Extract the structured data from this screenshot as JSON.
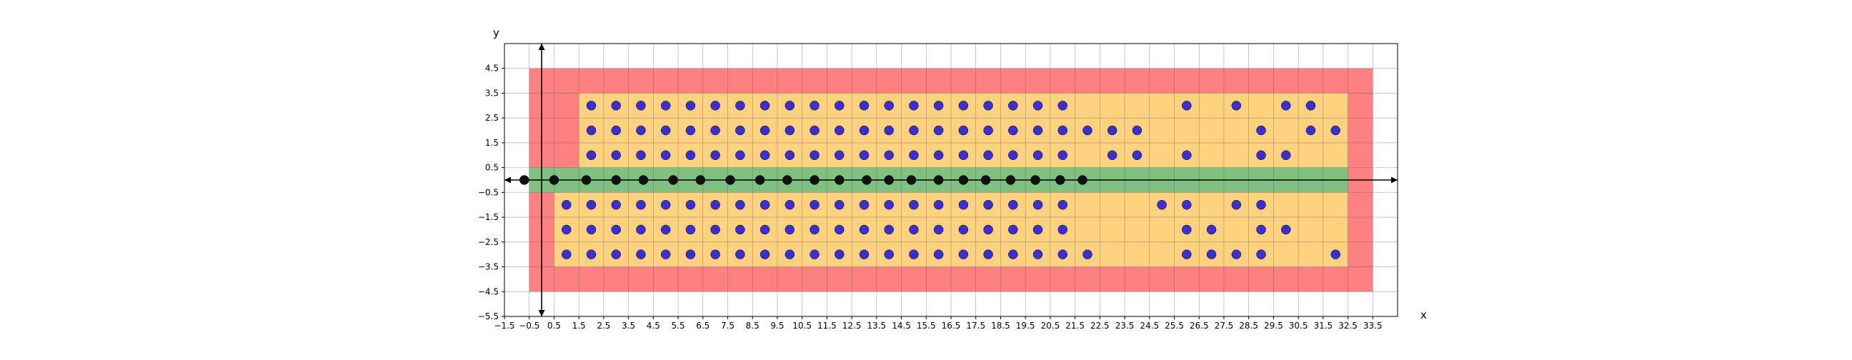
{
  "chart_data": {
    "type": "scatter",
    "title": "",
    "xlabel": "x",
    "ylabel": "y",
    "xlim": [
      -1.5,
      34.5
    ],
    "ylim": [
      -5.5,
      5.5
    ],
    "grid": true,
    "x_ticks": [
      "−1.5",
      "−0.5",
      "0.5",
      "1.5",
      "2.5",
      "3.5",
      "4.5",
      "5.5",
      "6.5",
      "7.5",
      "8.5",
      "9.5",
      "10.5",
      "11.5",
      "12.5",
      "13.5",
      "14.5",
      "15.5",
      "16.5",
      "17.5",
      "18.5",
      "19.5",
      "20.5",
      "21.5",
      "22.5",
      "23.5",
      "24.5",
      "25.5",
      "26.5",
      "27.5",
      "28.5",
      "29.5",
      "30.5",
      "31.5",
      "32.5",
      "33.5"
    ],
    "y_ticks": [
      "−5.5",
      "−4.5",
      "−3.5",
      "−2.5",
      "−1.5",
      "−0.5",
      "0.5",
      "1.5",
      "2.5",
      "3.5",
      "4.5"
    ],
    "regions": [
      {
        "color": "#ff8080",
        "x": [
          -0.5,
          33.5
        ],
        "y": [
          -4.5,
          4.5
        ]
      },
      {
        "color": "#ffd280",
        "x": [
          1.5,
          32.5
        ],
        "y": [
          0.5,
          3.5
        ]
      },
      {
        "color": "#ffd280",
        "x": [
          0.5,
          32.5
        ],
        "y": [
          -3.5,
          -0.5
        ]
      },
      {
        "color": "#80c080",
        "x": [
          -0.5,
          32.5
        ],
        "y": [
          -0.5,
          0.5
        ]
      }
    ],
    "series": [
      {
        "marker_color": "#3a2fd6",
        "points": [
          [
            2,
            3
          ],
          [
            3,
            3
          ],
          [
            4,
            3
          ],
          [
            5,
            3
          ],
          [
            6,
            3
          ],
          [
            7,
            3
          ],
          [
            8,
            3
          ],
          [
            9,
            3
          ],
          [
            10,
            3
          ],
          [
            11,
            3
          ],
          [
            12,
            3
          ],
          [
            13,
            3
          ],
          [
            14,
            3
          ],
          [
            15,
            3
          ],
          [
            16,
            3
          ],
          [
            17,
            3
          ],
          [
            18,
            3
          ],
          [
            19,
            3
          ],
          [
            20,
            3
          ],
          [
            21,
            3
          ],
          [
            26,
            3
          ],
          [
            28,
            3
          ],
          [
            30,
            3
          ],
          [
            31,
            3
          ],
          [
            2,
            2
          ],
          [
            3,
            2
          ],
          [
            4,
            2
          ],
          [
            5,
            2
          ],
          [
            6,
            2
          ],
          [
            7,
            2
          ],
          [
            8,
            2
          ],
          [
            9,
            2
          ],
          [
            10,
            2
          ],
          [
            11,
            2
          ],
          [
            12,
            2
          ],
          [
            13,
            2
          ],
          [
            14,
            2
          ],
          [
            15,
            2
          ],
          [
            16,
            2
          ],
          [
            17,
            2
          ],
          [
            18,
            2
          ],
          [
            19,
            2
          ],
          [
            20,
            2
          ],
          [
            21,
            2
          ],
          [
            22,
            2
          ],
          [
            23,
            2
          ],
          [
            24,
            2
          ],
          [
            29,
            2
          ],
          [
            31,
            2
          ],
          [
            32,
            2
          ],
          [
            2,
            1
          ],
          [
            3,
            1
          ],
          [
            4,
            1
          ],
          [
            5,
            1
          ],
          [
            6,
            1
          ],
          [
            7,
            1
          ],
          [
            8,
            1
          ],
          [
            9,
            1
          ],
          [
            10,
            1
          ],
          [
            11,
            1
          ],
          [
            12,
            1
          ],
          [
            13,
            1
          ],
          [
            14,
            1
          ],
          [
            15,
            1
          ],
          [
            16,
            1
          ],
          [
            17,
            1
          ],
          [
            18,
            1
          ],
          [
            19,
            1
          ],
          [
            20,
            1
          ],
          [
            21,
            1
          ],
          [
            23,
            1
          ],
          [
            24,
            1
          ],
          [
            26,
            1
          ],
          [
            29,
            1
          ],
          [
            30,
            1
          ],
          [
            1,
            -1
          ],
          [
            2,
            -1
          ],
          [
            3,
            -1
          ],
          [
            4,
            -1
          ],
          [
            5,
            -1
          ],
          [
            6,
            -1
          ],
          [
            7,
            -1
          ],
          [
            8,
            -1
          ],
          [
            9,
            -1
          ],
          [
            10,
            -1
          ],
          [
            11,
            -1
          ],
          [
            12,
            -1
          ],
          [
            13,
            -1
          ],
          [
            14,
            -1
          ],
          [
            15,
            -1
          ],
          [
            16,
            -1
          ],
          [
            17,
            -1
          ],
          [
            18,
            -1
          ],
          [
            19,
            -1
          ],
          [
            20,
            -1
          ],
          [
            21,
            -1
          ],
          [
            25,
            -1
          ],
          [
            26,
            -1
          ],
          [
            28,
            -1
          ],
          [
            29,
            -1
          ],
          [
            1,
            -2
          ],
          [
            2,
            -2
          ],
          [
            3,
            -2
          ],
          [
            4,
            -2
          ],
          [
            5,
            -2
          ],
          [
            6,
            -2
          ],
          [
            7,
            -2
          ],
          [
            8,
            -2
          ],
          [
            9,
            -2
          ],
          [
            10,
            -2
          ],
          [
            11,
            -2
          ],
          [
            12,
            -2
          ],
          [
            13,
            -2
          ],
          [
            14,
            -2
          ],
          [
            15,
            -2
          ],
          [
            16,
            -2
          ],
          [
            17,
            -2
          ],
          [
            18,
            -2
          ],
          [
            19,
            -2
          ],
          [
            20,
            -2
          ],
          [
            21,
            -2
          ],
          [
            26,
            -2
          ],
          [
            27,
            -2
          ],
          [
            29,
            -2
          ],
          [
            30,
            -2
          ],
          [
            1,
            -3
          ],
          [
            2,
            -3
          ],
          [
            3,
            -3
          ],
          [
            4,
            -3
          ],
          [
            5,
            -3
          ],
          [
            6,
            -3
          ],
          [
            7,
            -3
          ],
          [
            8,
            -3
          ],
          [
            9,
            -3
          ],
          [
            10,
            -3
          ],
          [
            11,
            -3
          ],
          [
            12,
            -3
          ],
          [
            13,
            -3
          ],
          [
            14,
            -3
          ],
          [
            15,
            -3
          ],
          [
            16,
            -3
          ],
          [
            17,
            -3
          ],
          [
            18,
            -3
          ],
          [
            19,
            -3
          ],
          [
            20,
            -3
          ],
          [
            21,
            -3
          ],
          [
            22,
            -3
          ],
          [
            26,
            -3
          ],
          [
            27,
            -3
          ],
          [
            28,
            -3
          ],
          [
            29,
            -3
          ],
          [
            32,
            -3
          ]
        ]
      },
      {
        "marker_color": "#111111",
        "points": [
          [
            -0.7,
            0
          ],
          [
            0.5,
            0
          ],
          [
            1.8,
            0
          ],
          [
            3,
            0
          ],
          [
            4.1,
            0
          ],
          [
            5.3,
            0
          ],
          [
            6.4,
            0
          ],
          [
            7.6,
            0
          ],
          [
            8.8,
            0
          ],
          [
            9.9,
            0
          ],
          [
            11,
            0
          ],
          [
            12,
            0
          ],
          [
            13.1,
            0
          ],
          [
            14,
            0
          ],
          [
            14.9,
            0
          ],
          [
            16,
            0
          ],
          [
            17,
            0
          ],
          [
            17.9,
            0
          ],
          [
            18.9,
            0
          ],
          [
            19.9,
            0
          ],
          [
            20.9,
            0
          ],
          [
            21.8,
            0
          ]
        ]
      }
    ]
  }
}
